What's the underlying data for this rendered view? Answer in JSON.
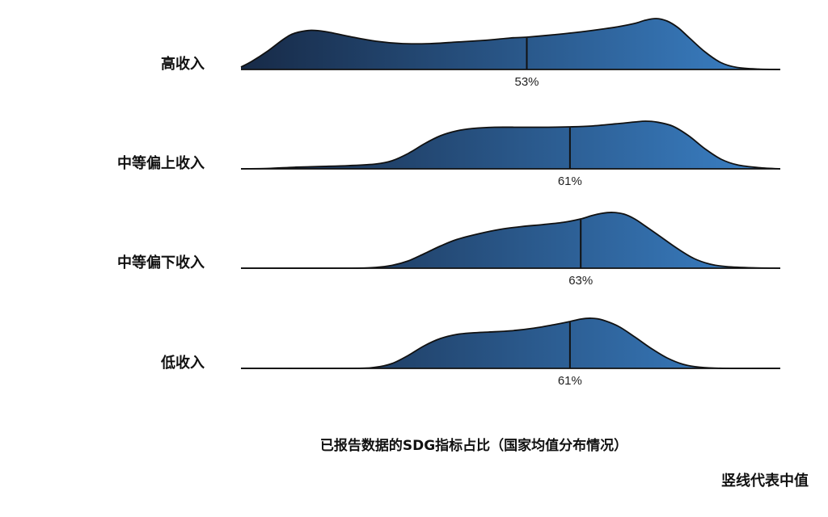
{
  "chart_data": {
    "type": "ridgeline",
    "xlabel": "已报告数据的SDG指标占比（国家均值分布情况）",
    "note": "竖线代表中值",
    "colors": {
      "gradient_start": "#172a47",
      "gradient_end": "#3b82c8",
      "stroke": "#111111"
    },
    "xlim": [
      0,
      100
    ],
    "series": [
      {
        "name": "高收入",
        "median": 53,
        "median_label": "53%",
        "density": [
          [
            0,
            0.06
          ],
          [
            2,
            0.2
          ],
          [
            5,
            0.46
          ],
          [
            8,
            0.76
          ],
          [
            10,
            0.9
          ],
          [
            13,
            0.97
          ],
          [
            16,
            0.93
          ],
          [
            20,
            0.82
          ],
          [
            25,
            0.7
          ],
          [
            30,
            0.64
          ],
          [
            35,
            0.64
          ],
          [
            40,
            0.68
          ],
          [
            45,
            0.72
          ],
          [
            50,
            0.78
          ],
          [
            53,
            0.8
          ],
          [
            58,
            0.86
          ],
          [
            63,
            0.93
          ],
          [
            67,
            1.0
          ],
          [
            70,
            1.06
          ],
          [
            73,
            1.14
          ],
          [
            75,
            1.22
          ],
          [
            77,
            1.26
          ],
          [
            79,
            1.2
          ],
          [
            81,
            1.04
          ],
          [
            83,
            0.8
          ],
          [
            86,
            0.44
          ],
          [
            89,
            0.17
          ],
          [
            92,
            0.05
          ],
          [
            96,
            0.01
          ],
          [
            100,
            0.0
          ]
        ]
      },
      {
        "name": "中等偏上收入",
        "median": 61,
        "median_label": "61%",
        "density": [
          [
            0,
            0.0
          ],
          [
            5,
            0.01
          ],
          [
            10,
            0.04
          ],
          [
            15,
            0.06
          ],
          [
            20,
            0.08
          ],
          [
            25,
            0.12
          ],
          [
            28,
            0.2
          ],
          [
            31,
            0.38
          ],
          [
            34,
            0.62
          ],
          [
            37,
            0.82
          ],
          [
            40,
            0.94
          ],
          [
            43,
            1.0
          ],
          [
            47,
            1.03
          ],
          [
            52,
            1.03
          ],
          [
            57,
            1.03
          ],
          [
            61,
            1.04
          ],
          [
            65,
            1.06
          ],
          [
            70,
            1.12
          ],
          [
            73,
            1.16
          ],
          [
            75,
            1.18
          ],
          [
            77,
            1.16
          ],
          [
            80,
            1.06
          ],
          [
            83,
            0.82
          ],
          [
            86,
            0.5
          ],
          [
            89,
            0.24
          ],
          [
            92,
            0.1
          ],
          [
            96,
            0.03
          ],
          [
            100,
            0.0
          ]
        ]
      },
      {
        "name": "中等偏下收入",
        "median": 63,
        "median_label": "63%",
        "density": [
          [
            0,
            0.0
          ],
          [
            20,
            0.0
          ],
          [
            25,
            0.02
          ],
          [
            28,
            0.07
          ],
          [
            31,
            0.18
          ],
          [
            34,
            0.36
          ],
          [
            37,
            0.55
          ],
          [
            40,
            0.71
          ],
          [
            44,
            0.85
          ],
          [
            48,
            0.96
          ],
          [
            52,
            1.03
          ],
          [
            56,
            1.08
          ],
          [
            60,
            1.14
          ],
          [
            63,
            1.22
          ],
          [
            65,
            1.3
          ],
          [
            67,
            1.36
          ],
          [
            69,
            1.38
          ],
          [
            71,
            1.34
          ],
          [
            73,
            1.22
          ],
          [
            75,
            1.04
          ],
          [
            78,
            0.76
          ],
          [
            81,
            0.48
          ],
          [
            84,
            0.24
          ],
          [
            87,
            0.1
          ],
          [
            90,
            0.04
          ],
          [
            95,
            0.01
          ],
          [
            100,
            0.0
          ]
        ]
      },
      {
        "name": "低收入",
        "median": 61,
        "median_label": "61%",
        "density": [
          [
            0,
            0.0
          ],
          [
            20,
            0.0
          ],
          [
            25,
            0.03
          ],
          [
            28,
            0.12
          ],
          [
            31,
            0.32
          ],
          [
            34,
            0.56
          ],
          [
            37,
            0.74
          ],
          [
            40,
            0.84
          ],
          [
            43,
            0.88
          ],
          [
            46,
            0.9
          ],
          [
            50,
            0.93
          ],
          [
            54,
            0.99
          ],
          [
            58,
            1.08
          ],
          [
            61,
            1.16
          ],
          [
            63,
            1.22
          ],
          [
            65,
            1.24
          ],
          [
            67,
            1.2
          ],
          [
            70,
            1.04
          ],
          [
            73,
            0.78
          ],
          [
            76,
            0.5
          ],
          [
            79,
            0.26
          ],
          [
            82,
            0.1
          ],
          [
            85,
            0.03
          ],
          [
            90,
            0.0
          ],
          [
            100,
            0.0
          ]
        ]
      }
    ]
  }
}
